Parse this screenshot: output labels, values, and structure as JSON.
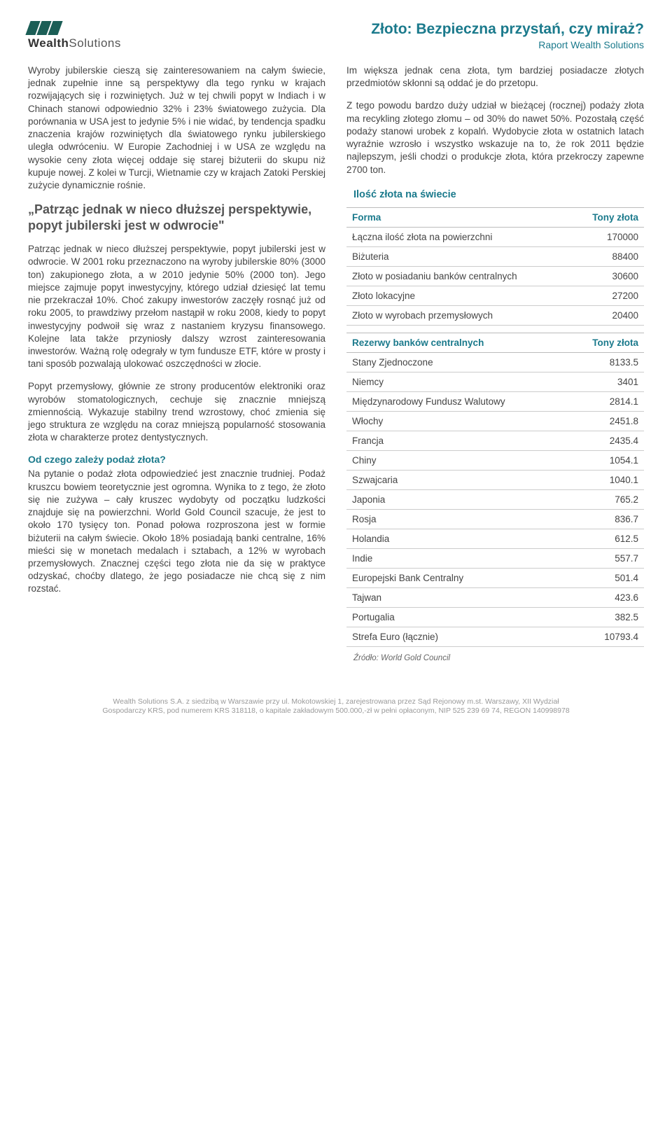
{
  "logo": {
    "brand1": "Wealth",
    "brand2": "Solutions"
  },
  "header": {
    "title": "Złoto: Bezpieczna przystań, czy miraż?",
    "subtitle": "Raport Wealth Solutions"
  },
  "left": {
    "p1": "Wyroby jubilerskie cieszą się zainteresowaniem na całym świecie, jednak zupełnie inne są perspektywy dla tego rynku w krajach rozwijających się i rozwiniętych. Już w tej chwili popyt w Indiach i w Chinach stanowi odpowiednio 32% i 23% światowego zużycia. Dla porównania w USA jest to jedynie 5% i nie widać, by tendencja spadku znaczenia krajów rozwiniętych dla światowego rynku jubilerskiego uległa odwróceniu. W Europie Zachodniej i w USA ze względu na wysokie ceny złota więcej oddaje się starej biżuterii do skupu niż kupuje nowej. Z kolei w Turcji, Wietnamie czy w krajach Zatoki Perskiej zużycie dynamicznie rośnie.",
    "quote": "„Patrząc jednak w nieco dłuższej perspektywie, popyt jubilerski jest w odwrocie\"",
    "p2": "Patrząc jednak w nieco dłuższej perspektywie, popyt jubilerski jest w odwrocie. W 2001 roku przeznaczono na wyroby jubilerskie 80% (3000 ton) zakupionego złota, a w 2010 jedynie 50% (2000 ton). Jego miejsce zajmuje popyt inwestycyjny, którego udział dziesięć lat temu nie przekraczał 10%. Choć zakupy inwestorów zaczęły rosnąć już od roku 2005, to prawdziwy przełom nastąpił w roku 2008, kiedy to popyt inwestycyjny podwoił się wraz z nastaniem kryzysu finansowego. Kolejne lata także przyniosły dalszy wzrost zainteresowania inwestorów. Ważną rolę odegrały w tym fundusze ETF, które w prosty i tani sposób pozwalają ulokować oszczędności w złocie.",
    "p3": "Popyt przemysłowy, głównie ze strony producentów elektroniki oraz wyrobów stomatologicznych, cechuje się znacznie mniejszą zmiennością. Wykazuje stabilny trend wzrostowy, choć zmienia się jego struktura ze względu na coraz mniejszą popularność stosowania złota w charakterze protez dentystycznych.",
    "h1": "Od czego zależy podaż złota?",
    "p4": "Na pytanie o podaż złota odpowiedzieć jest znacznie trudniej. Podaż kruszcu bowiem teoretycznie jest ogromna. Wynika to z tego, że złoto się nie zużywa – cały kruszec wydobyty od początku ludzkości znajduje się na powierzchni. World Gold Council szacuje, że jest to około 170 tysięcy ton. Ponad połowa rozproszona jest w formie biżuterii na całym świecie. Około 18% posiadają banki centralne, 16% mieści się w monetach medalach i sztabach, a 12% w wyrobach przemysłowych. Znacznej części tego złota nie da się w praktyce odzyskać, choćby dlatego, że jego posiadacze nie chcą się z nim rozstać."
  },
  "right": {
    "p1": "Im większa jednak cena złota, tym bardziej posiadacze złotych przedmiotów skłonni są oddać je do przetopu.",
    "p2": "Z tego powodu bardzo duży udział w bieżącej (rocznej) podaży złota ma recykling złotego złomu – od 30% do nawet 50%. Pozostałą część podaży stanowi urobek z kopalń. Wydobycie złota w ostatnich latach wyraźnie wzrosło i wszystko wskazuje na to, że rok 2011 będzie najlepszym, jeśli chodzi o produkcje złota, która przekroczy zapewne 2700 ton.",
    "table1": {
      "title": "Ilość złota na świecie",
      "col1": "Forma",
      "col2": "Tony złota",
      "rows": [
        {
          "label": "Łączna ilość złota na powierzchni",
          "value": "170000"
        },
        {
          "label": "Biżuteria",
          "value": "88400"
        },
        {
          "label": "Złoto w posiadaniu banków centralnych",
          "value": "30600"
        },
        {
          "label": "Złoto lokacyjne",
          "value": "27200"
        },
        {
          "label": "Złoto w wyrobach przemysłowych",
          "value": "20400"
        }
      ]
    },
    "table2": {
      "col1": "Rezerwy banków centralnych",
      "col2": "Tony złota",
      "rows": [
        {
          "label": "Stany Zjednoczone",
          "value": "8133.5"
        },
        {
          "label": "Niemcy",
          "value": "3401"
        },
        {
          "label": "Międzynarodowy Fundusz Walutowy",
          "value": "2814.1"
        },
        {
          "label": "Włochy",
          "value": "2451.8"
        },
        {
          "label": "Francja",
          "value": "2435.4"
        },
        {
          "label": "Chiny",
          "value": "1054.1"
        },
        {
          "label": "Szwajcaria",
          "value": "1040.1"
        },
        {
          "label": "Japonia",
          "value": "765.2"
        },
        {
          "label": "Rosja",
          "value": "836.7"
        },
        {
          "label": "Holandia",
          "value": "612.5"
        },
        {
          "label": "Indie",
          "value": "557.7"
        },
        {
          "label": "Europejski Bank Centralny",
          "value": "501.4"
        },
        {
          "label": "Tajwan",
          "value": "423.6"
        },
        {
          "label": "Portugalia",
          "value": "382.5"
        },
        {
          "label": "Strefa Euro (łącznie)",
          "value": "10793.4"
        }
      ]
    },
    "source": "Źródło: World Gold Council"
  },
  "footer": {
    "l1": "Wealth Solutions S.A. z siedzibą w Warszawie przy ul. Mokotowskiej 1, zarejestrowana przez Sąd Rejonowy m.st. Warszawy, XII Wydział",
    "l2": "Gospodarczy KRS, pod numerem KRS 318118, o kapitale zakładowym 500.000,-zł w pełni opłaconym, NIP 525 239 69 74, REGON 140998978"
  }
}
